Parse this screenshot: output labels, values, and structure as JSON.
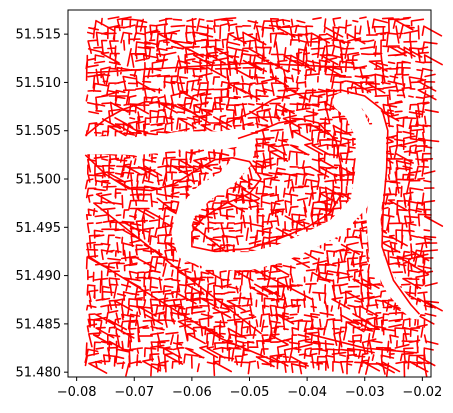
{
  "chart_data": {
    "type": "map",
    "description_of_marks": "street network line plot",
    "x_ticks": [
      "−0.08",
      "−0.07",
      "−0.06",
      "−0.05",
      "−0.04",
      "−0.03",
      "−0.02"
    ],
    "x_tick_values": [
      -0.08,
      -0.07,
      -0.06,
      -0.05,
      -0.04,
      -0.03,
      -0.02
    ],
    "y_ticks": [
      "51.480",
      "51.485",
      "51.490",
      "51.495",
      "51.500",
      "51.505",
      "51.510",
      "51.515"
    ],
    "y_tick_values": [
      51.48,
      51.485,
      51.49,
      51.495,
      51.5,
      51.505,
      51.51,
      51.515
    ],
    "xlim": [
      -0.0815,
      -0.0185
    ],
    "ylim": [
      51.4795,
      51.5175
    ],
    "line_color": "#ff0000",
    "river_bank_north": [
      [
        -0.0785,
        51.5045
      ],
      [
        -0.075,
        51.5062
      ],
      [
        -0.072,
        51.5072
      ],
      [
        -0.068,
        51.508
      ],
      [
        -0.064,
        51.5078
      ],
      [
        -0.06,
        51.5069
      ],
      [
        -0.057,
        51.5058
      ],
      [
        -0.054,
        51.5058
      ],
      [
        -0.05,
        51.5068
      ],
      [
        -0.046,
        51.5082
      ],
      [
        -0.042,
        51.5088
      ],
      [
        -0.038,
        51.509
      ],
      [
        -0.034,
        51.5092
      ],
      [
        -0.03,
        51.5086
      ],
      [
        -0.027,
        51.5072
      ],
      [
        -0.026,
        51.505
      ],
      [
        -0.0262,
        51.501
      ],
      [
        -0.0268,
        51.497
      ],
      [
        -0.027,
        51.493
      ],
      [
        -0.025,
        51.4895
      ],
      [
        -0.022,
        51.487
      ],
      [
        -0.0205,
        51.486
      ]
    ],
    "river_bank_south": [
      [
        -0.0785,
        51.5025
      ],
      [
        -0.075,
        51.5005
      ],
      [
        -0.071,
        51.499
      ],
      [
        -0.067,
        51.4988
      ],
      [
        -0.063,
        51.4995
      ],
      [
        -0.059,
        51.501
      ],
      [
        -0.056,
        51.502
      ],
      [
        -0.053,
        51.5022
      ],
      [
        -0.05,
        51.5018
      ],
      [
        -0.048,
        51.5
      ],
      [
        -0.05,
        51.4985
      ],
      [
        -0.054,
        51.4975
      ],
      [
        -0.058,
        51.496
      ],
      [
        -0.06,
        51.4945
      ],
      [
        -0.06,
        51.493
      ],
      [
        -0.056,
        51.4925
      ],
      [
        -0.05,
        51.4928
      ],
      [
        -0.045,
        51.4938
      ],
      [
        -0.04,
        51.495
      ],
      [
        -0.036,
        51.4965
      ],
      [
        -0.034,
        51.4985
      ],
      [
        -0.034,
        51.501
      ],
      [
        -0.035,
        51.504
      ],
      [
        -0.038,
        51.5058
      ],
      [
        -0.041,
        51.5062
      ],
      [
        -0.045,
        51.5058
      ],
      [
        -0.049,
        51.5048
      ],
      [
        -0.052,
        51.5042
      ]
    ],
    "grid": false,
    "legend": "none"
  }
}
